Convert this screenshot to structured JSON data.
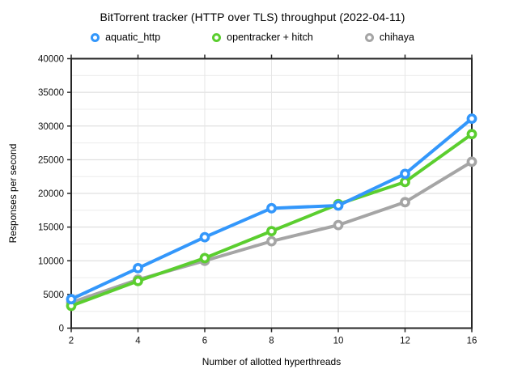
{
  "chart_data": {
    "type": "line",
    "title": "BitTorrent tracker (HTTP over TLS) throughput (2022-04-11)",
    "xlabel": "Number of allotted hyperthreads",
    "ylabel": "Responses per second",
    "categories": [
      "2",
      "4",
      "6",
      "8",
      "10",
      "12",
      "16"
    ],
    "ylim": [
      0,
      40000
    ],
    "y_ticks": [
      0,
      5000,
      10000,
      15000,
      20000,
      25000,
      30000,
      35000,
      40000
    ],
    "y_minor_step": 2500,
    "grid": "horizontal major+minor lines, vertical line per category",
    "legend_position": "top",
    "axis_box_color": "#262626",
    "series": [
      {
        "name": "aquatic_http",
        "color": "#3397FB",
        "values": [
          4300,
          8900,
          13500,
          17800,
          18200,
          22900,
          31100
        ]
      },
      {
        "name": "opentracker + hitch",
        "color": "#5BCE2F",
        "values": [
          3300,
          7000,
          10400,
          14400,
          18400,
          21700,
          28800
        ]
      },
      {
        "name": "chihaya",
        "color": "#A5A5A5",
        "values": [
          3800,
          7200,
          10000,
          12900,
          15300,
          18700,
          24700
        ]
      }
    ]
  }
}
